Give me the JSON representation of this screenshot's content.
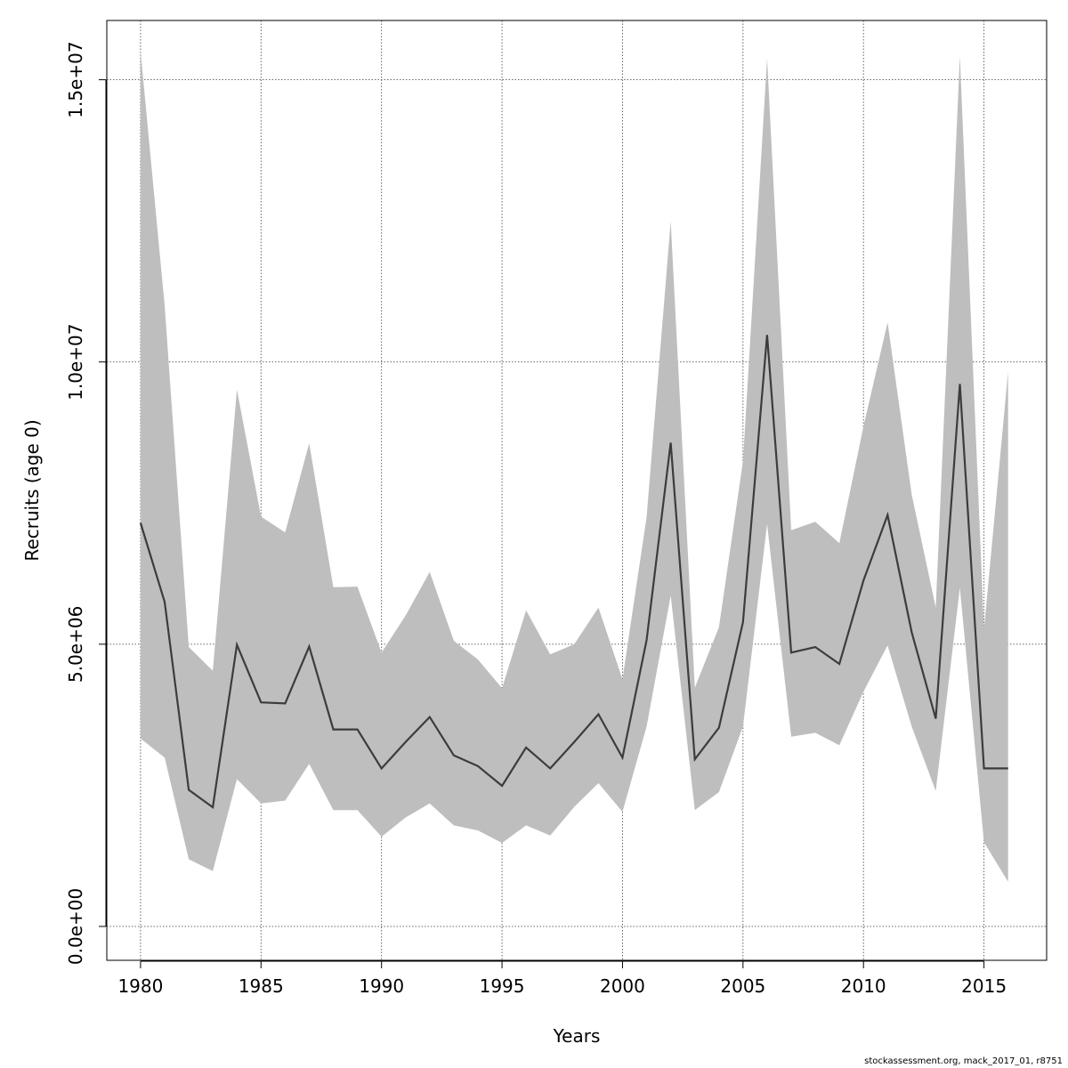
{
  "chart_data": {
    "type": "line",
    "title": "",
    "xlabel": "Years",
    "ylabel": "Recruits (age 0)",
    "xlim": [
      1978.6,
      2017.6
    ],
    "ylim": [
      -600000,
      16050000
    ],
    "x_ticks": [
      1980,
      1985,
      1990,
      1995,
      2000,
      2005,
      2010,
      2015
    ],
    "x_tick_labels": [
      "1980",
      "1985",
      "1990",
      "1995",
      "2000",
      "2005",
      "2010",
      "2015"
    ],
    "y_ticks": [
      0,
      5000000,
      10000000,
      15000000
    ],
    "y_tick_labels": [
      "0.0e+00",
      "5.0e+06",
      "1.0e+07",
      "1.5e+07"
    ],
    "grid": true,
    "band_color": "#bebebe",
    "line_color": "#3c3c3c",
    "x": [
      1980,
      1981,
      1982,
      1983,
      1984,
      1985,
      1986,
      1987,
      1988,
      1989,
      1990,
      1991,
      1992,
      1993,
      1994,
      1995,
      1996,
      1997,
      1998,
      1999,
      2000,
      2001,
      2002,
      2003,
      2004,
      2005,
      2006,
      2007,
      2008,
      2009,
      2010,
      2011,
      2012,
      2013,
      2014,
      2015,
      2016
    ],
    "series": [
      {
        "name": "Recruits",
        "values": [
          7150000,
          5750000,
          2420000,
          2110000,
          4990000,
          3970000,
          3950000,
          4960000,
          3490000,
          3490000,
          2800000,
          3270000,
          3710000,
          3030000,
          2840000,
          2490000,
          3170000,
          2800000,
          3270000,
          3760000,
          2990000,
          5070000,
          8570000,
          2960000,
          3520000,
          5390000,
          10480000,
          4850000,
          4950000,
          4650000,
          6130000,
          7290000,
          5210000,
          3680000,
          9610000,
          2800000,
          2800000
        ]
      },
      {
        "name": "Upper bound",
        "values": [
          15510000,
          11000000,
          4950000,
          4530000,
          9510000,
          7260000,
          6980000,
          8560000,
          6010000,
          6020000,
          4850000,
          5510000,
          6280000,
          5060000,
          4730000,
          4220000,
          5600000,
          4820000,
          5000000,
          5650000,
          4380000,
          7250000,
          12490000,
          4230000,
          5300000,
          8240000,
          15380000,
          7020000,
          7170000,
          6790000,
          8860000,
          10700000,
          7650000,
          5650000,
          15420000,
          5260000,
          9830000
        ]
      },
      {
        "name": "Lower bound",
        "values": [
          3330000,
          2990000,
          1190000,
          980000,
          2610000,
          2180000,
          2230000,
          2880000,
          2060000,
          2060000,
          1590000,
          1930000,
          2180000,
          1790000,
          1700000,
          1480000,
          1790000,
          1610000,
          2120000,
          2540000,
          2030000,
          3540000,
          5860000,
          2060000,
          2380000,
          3540000,
          7130000,
          3360000,
          3430000,
          3210000,
          4160000,
          4980000,
          3540000,
          2400000,
          6000000,
          1490000,
          790000
        ]
      }
    ]
  },
  "footer": "stockassessment.org, mack_2017_01, r8751"
}
